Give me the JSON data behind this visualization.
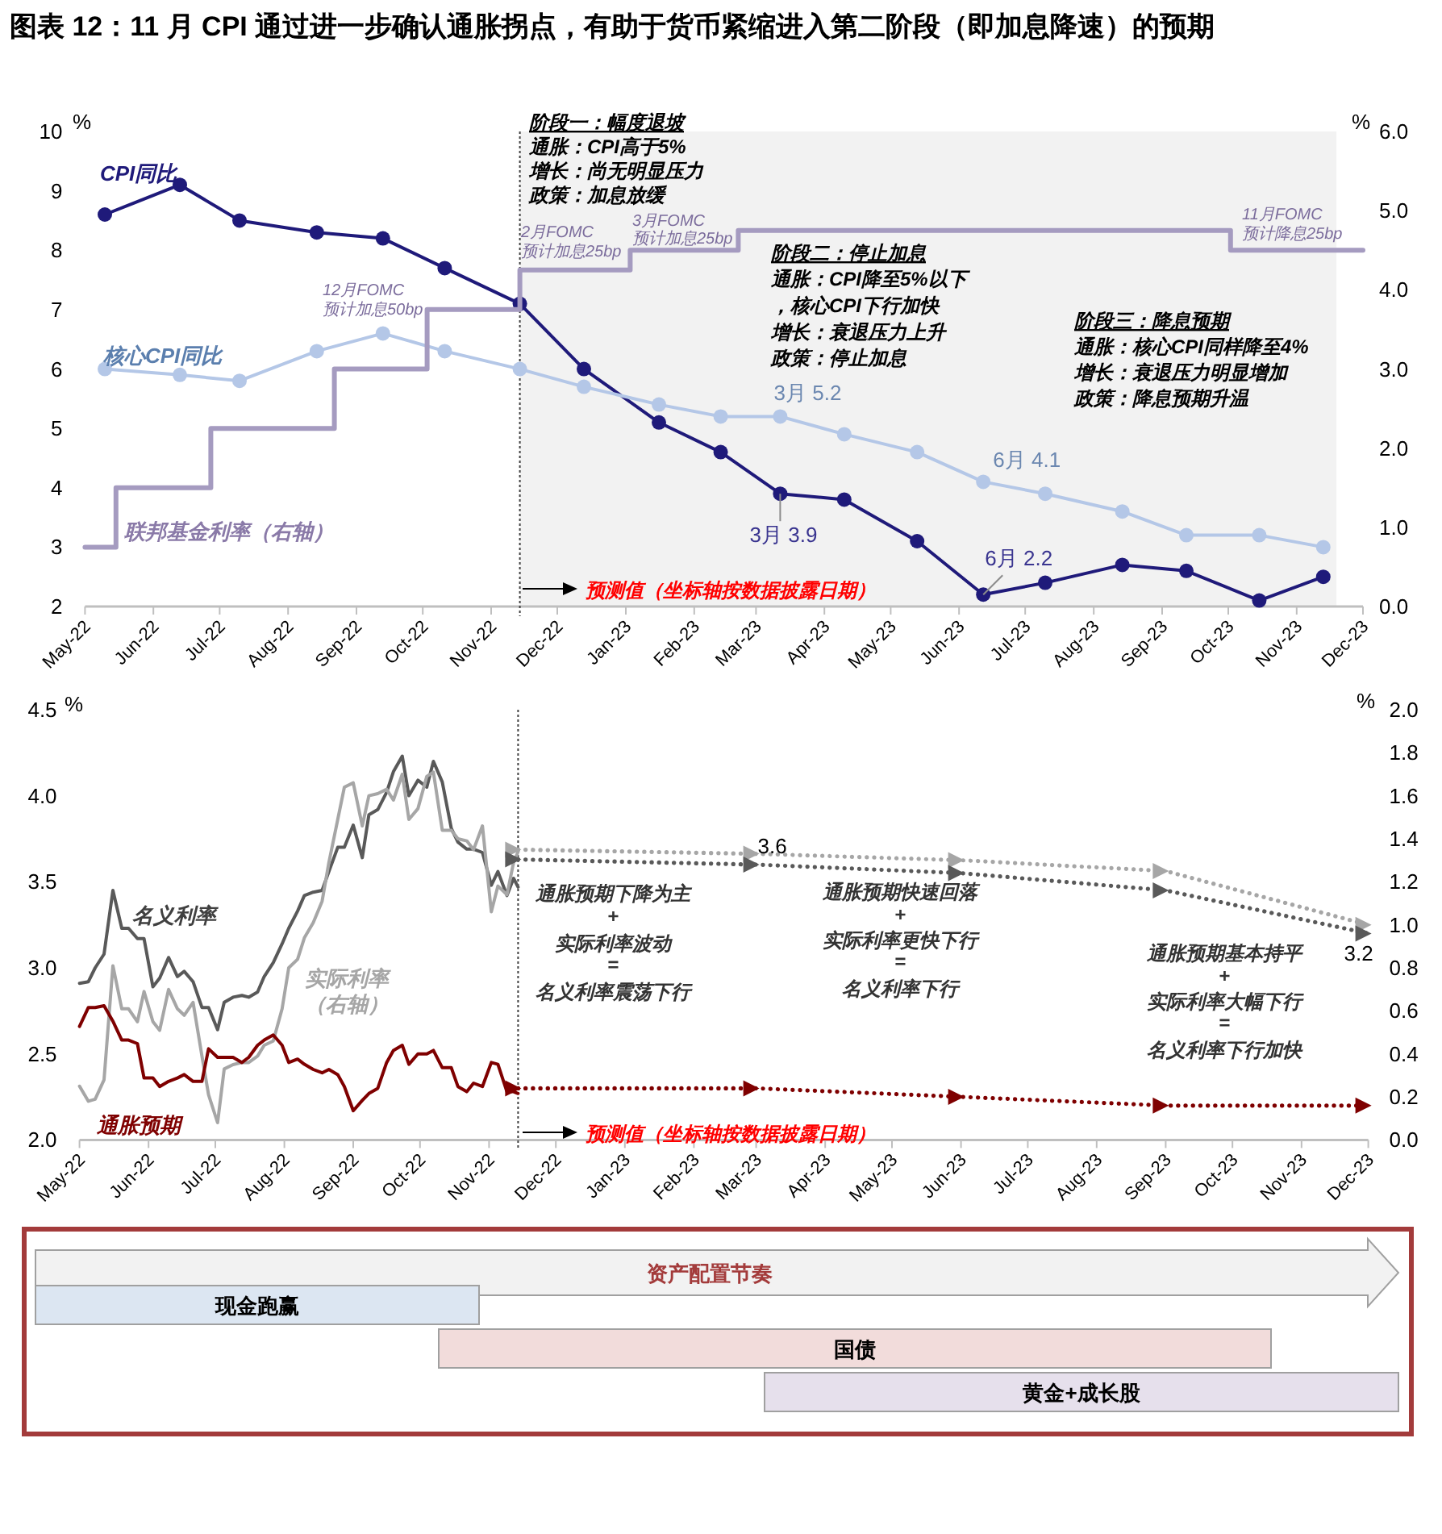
{
  "chart_data": [
    {
      "type": "line",
      "title": "图表 12：11 月 CPI 通过进一步确认通胀拐点，有助于货币紧缩进入第二阶段（即加息降速）的预期",
      "x": [
        "2022-05-10",
        "2022-06-13",
        "2022-07-10",
        "2022-08-14",
        "2022-09-13",
        "2022-10-11",
        "2022-11-14",
        "2022-12-13",
        "2023-01-16",
        "2023-02-13",
        "2023-03-12",
        "2023-04-10",
        "2023-05-13",
        "2023-06-12",
        "2023-07-10",
        "2023-08-14",
        "2023-09-12",
        "2023-10-15",
        "2023-11-13"
      ],
      "xlim": [
        "2022-05",
        "2023-12"
      ],
      "xticks": [
        {
          "value": "2022-05",
          "label": "May-22"
        },
        {
          "value": "2022-06",
          "label": "Jun-22"
        },
        {
          "value": "2022-07",
          "label": "Jul-22"
        },
        {
          "value": "2022-08",
          "label": "Aug-22"
        },
        {
          "value": "2022-09",
          "label": "Sep-22"
        },
        {
          "value": "2022-10",
          "label": "Oct-22"
        },
        {
          "value": "2022-11",
          "label": "Nov-22"
        },
        {
          "value": "2022-12",
          "label": "Dec-22"
        },
        {
          "value": "2023-01",
          "label": "Jan-23"
        },
        {
          "value": "2023-02",
          "label": "Feb-23"
        },
        {
          "value": "2023-03",
          "label": "Mar-23"
        },
        {
          "value": "2023-04",
          "label": "Apr-23"
        },
        {
          "value": "2023-05",
          "label": "May-23"
        },
        {
          "value": "2023-06",
          "label": "Jun-23"
        },
        {
          "value": "2023-07",
          "label": "Jul-23"
        },
        {
          "value": "2023-08",
          "label": "Aug-23"
        },
        {
          "value": "2023-09",
          "label": "Sep-23"
        },
        {
          "value": "2023-10",
          "label": "Oct-23"
        },
        {
          "value": "2023-11",
          "label": "Nov-23"
        },
        {
          "value": "2023-12",
          "label": "Dec-23"
        }
      ],
      "ylim": [
        2,
        10
      ],
      "yticks": [
        2,
        3,
        4,
        5,
        6,
        7,
        8,
        9,
        10
      ],
      "y2lim": [
        0,
        6
      ],
      "y2ticks": [
        {
          "value": 0,
          "label": "0.0"
        },
        {
          "value": 1,
          "label": "1.0"
        },
        {
          "value": 2,
          "label": "2.0"
        },
        {
          "value": 3,
          "label": "3.0"
        },
        {
          "value": 4,
          "label": "4.0"
        },
        {
          "value": 5,
          "label": "5.0"
        },
        {
          "value": 6,
          "label": "6.0"
        }
      ],
      "ylabel": "%",
      "y2label": "%",
      "series": [
        {
          "name": "CPI同比",
          "color": "#1f1a7a",
          "marker": "circle",
          "values": [
            8.6,
            9.1,
            8.5,
            8.3,
            8.2,
            7.7,
            7.1,
            6.0,
            5.1,
            4.6,
            3.9,
            3.8,
            3.1,
            2.2,
            2.4,
            2.7,
            2.6,
            2.1,
            2.5
          ]
        },
        {
          "name": "核心CPI同比",
          "color": "#b4c7e7",
          "marker": "circle",
          "values": [
            6.0,
            5.9,
            5.8,
            6.3,
            6.6,
            6.3,
            6.0,
            5.7,
            5.4,
            5.2,
            5.2,
            4.9,
            4.6,
            4.1,
            3.9,
            3.6,
            3.2,
            3.2,
            3.0
          ]
        },
        {
          "name": "联邦基金利率（右轴）",
          "color": "#a59bc0",
          "type": "step",
          "axis": "y2",
          "x": [
            "2022-05-01",
            "2022-05-15",
            "2022-06-27",
            "2022-08-22",
            "2022-10-03",
            "2022-11-14",
            "2023-01-03",
            "2023-02-21",
            "2023-10-02",
            "2023-12-01"
          ],
          "values": [
            0.75,
            1.5,
            2.25,
            3.0,
            3.75,
            4.25,
            4.5,
            4.75,
            4.5,
            4.5
          ]
        }
      ],
      "bands": [
        {
          "axis": "x",
          "from": "2022-11-14",
          "to": "2023-11-19",
          "color": "#f2f2f2"
        }
      ],
      "ref_lines": [
        {
          "axis": "x",
          "value": "2022-11-14",
          "line_style": "dotted",
          "color": "#404040"
        }
      ],
      "annotations": [
        "阶段一：幅度退坡",
        "通胀：CPI高于5%",
        "增长：尚无明显压力",
        "政策：加息放缓",
        "阶段二：停止加息",
        "通胀：CPI降至5%以下，核心CPI下行加快",
        "增长：衰退压力上升",
        "政策：停止加息",
        "阶段三：降息预期",
        "通胀：核心CPI同样降至4%",
        "增长：衰退压力明显增加",
        "政策：降息预期升温",
        "12月FOMC",
        "预计加息50bp",
        "2月FOMC",
        "预计加息25bp",
        "3月FOMC",
        "预计加息25bp",
        "11月FOMC",
        "预计降息25bp",
        "预测值（坐标轴按数据披露日期）",
        {
          "text": "3月 3.9",
          "x": "2023-03-12",
          "y": 3.9
        },
        {
          "text": "6月 2.2",
          "x": "2023-06-12",
          "y": 2.2
        },
        {
          "text": "3月 5.2",
          "x": "2023-03-12",
          "y": 5.2
        },
        {
          "text": "6月 4.1",
          "x": "2023-06-12",
          "y": 4.1
        }
      ]
    },
    {
      "type": "line",
      "x": [
        "2022-05-01",
        "2022-05-05",
        "2022-05-08",
        "2022-05-12",
        "2022-05-16",
        "2022-05-20",
        "2022-05-23",
        "2022-05-27",
        "2022-05-30",
        "2022-06-03",
        "2022-06-06",
        "2022-06-10",
        "2022-06-14",
        "2022-06-17",
        "2022-06-21",
        "2022-06-25",
        "2022-06-28",
        "2022-07-02",
        "2022-07-05",
        "2022-07-09",
        "2022-07-13",
        "2022-07-16",
        "2022-07-20",
        "2022-07-23",
        "2022-07-27",
        "2022-07-31",
        "2022-08-03",
        "2022-08-07",
        "2022-08-10",
        "2022-08-14",
        "2022-08-18",
        "2022-08-21",
        "2022-08-25",
        "2022-08-28",
        "2022-09-01",
        "2022-09-05",
        "2022-09-08",
        "2022-09-12",
        "2022-09-16",
        "2022-09-19",
        "2022-09-23",
        "2022-09-26",
        "2022-09-30",
        "2022-10-04",
        "2022-10-07",
        "2022-10-11",
        "2022-10-15",
        "2022-10-18",
        "2022-10-22",
        "2022-10-25",
        "2022-10-29",
        "2022-11-02",
        "2022-11-05",
        "2022-11-09",
        "2022-11-12",
        "2022-11-14"
      ],
      "xlim": [
        "2022-05",
        "2023-12"
      ],
      "xticks": [
        {
          "value": "2022-05",
          "label": "May-22"
        },
        {
          "value": "2022-06",
          "label": "Jun-22"
        },
        {
          "value": "2022-07",
          "label": "Jul-22"
        },
        {
          "value": "2022-08",
          "label": "Aug-22"
        },
        {
          "value": "2022-09",
          "label": "Sep-22"
        },
        {
          "value": "2022-10",
          "label": "Oct-22"
        },
        {
          "value": "2022-11",
          "label": "Nov-22"
        },
        {
          "value": "2022-12",
          "label": "Dec-22"
        },
        {
          "value": "2023-01",
          "label": "Jan-23"
        },
        {
          "value": "2023-02",
          "label": "Feb-23"
        },
        {
          "value": "2023-03",
          "label": "Mar-23"
        },
        {
          "value": "2023-04",
          "label": "Apr-23"
        },
        {
          "value": "2023-05",
          "label": "May-23"
        },
        {
          "value": "2023-06",
          "label": "Jun-23"
        },
        {
          "value": "2023-07",
          "label": "Jul-23"
        },
        {
          "value": "2023-08",
          "label": "Aug-23"
        },
        {
          "value": "2023-09",
          "label": "Sep-23"
        },
        {
          "value": "2023-10",
          "label": "Oct-23"
        },
        {
          "value": "2023-11",
          "label": "Nov-23"
        },
        {
          "value": "2023-12",
          "label": "Dec-23"
        }
      ],
      "ylim": [
        2,
        4.5
      ],
      "yticks": [
        {
          "value": 2,
          "label": "2.0"
        },
        {
          "value": 2.5,
          "label": "2.5"
        },
        {
          "value": 3,
          "label": "3.0"
        },
        {
          "value": 3.5,
          "label": "3.5"
        },
        {
          "value": 4,
          "label": "4.0"
        },
        {
          "value": 4.5,
          "label": "4.5"
        }
      ],
      "y2lim": [
        0,
        2
      ],
      "y2ticks": [
        {
          "value": 0,
          "label": "0.0"
        },
        {
          "value": 0.2,
          "label": "0.2"
        },
        {
          "value": 0.4,
          "label": "0.4"
        },
        {
          "value": 0.6,
          "label": "0.6"
        },
        {
          "value": 0.8,
          "label": "0.8"
        },
        {
          "value": 1,
          "label": "1.0"
        },
        {
          "value": 1.2,
          "label": "1.2"
        },
        {
          "value": 1.4,
          "label": "1.4"
        },
        {
          "value": 1.6,
          "label": "1.6"
        },
        {
          "value": 1.8,
          "label": "1.8"
        },
        {
          "value": 2,
          "label": "2.0"
        }
      ],
      "ylabel": "%",
      "y2label": "%",
      "series": [
        {
          "name": "名义利率",
          "color": "#595959",
          "values": [
            2.91,
            2.92,
            3.0,
            3.08,
            3.45,
            3.23,
            3.23,
            3.17,
            3.17,
            2.89,
            2.94,
            3.06,
            2.95,
            2.98,
            2.92,
            2.77,
            2.77,
            2.64,
            2.8,
            2.83,
            2.84,
            2.83,
            2.86,
            2.95,
            3.03,
            3.14,
            3.23,
            3.33,
            3.42,
            3.44,
            3.45,
            3.56,
            3.7,
            3.7,
            3.83,
            3.64,
            3.89,
            3.92,
            4.02,
            4.14,
            4.23,
            4.0,
            4.09,
            4.05,
            4.2,
            4.08,
            3.81,
            3.73,
            3.69,
            3.69,
            3.67,
            3.48,
            3.56,
            3.42,
            3.52,
            3.47
          ]
        },
        {
          "name": "实际利率（右轴）",
          "color": "#a6a6a6",
          "axis": "y2",
          "values": [
            0.25,
            0.18,
            0.19,
            0.28,
            0.81,
            0.61,
            0.61,
            0.55,
            0.69,
            0.55,
            0.51,
            0.7,
            0.61,
            0.58,
            0.64,
            0.39,
            0.21,
            0.08,
            0.33,
            0.35,
            0.36,
            0.36,
            0.39,
            0.44,
            0.46,
            0.61,
            0.8,
            0.84,
            0.94,
            1.01,
            1.11,
            1.29,
            1.49,
            1.64,
            1.66,
            1.46,
            1.6,
            1.61,
            1.63,
            1.58,
            1.7,
            1.49,
            1.54,
            1.69,
            1.71,
            1.44,
            1.44,
            1.4,
            1.39,
            1.35,
            1.46,
            1.06,
            1.18,
            1.14,
            1.29,
            1.34
          ]
        },
        {
          "name": "通胀预期",
          "color": "#7f0000",
          "values": [
            2.66,
            2.77,
            2.77,
            2.78,
            2.69,
            2.58,
            2.58,
            2.56,
            2.36,
            2.36,
            2.31,
            2.34,
            2.36,
            2.38,
            2.34,
            2.34,
            2.53,
            2.48,
            2.48,
            2.48,
            2.45,
            2.48,
            2.55,
            2.58,
            2.61,
            2.55,
            2.45,
            2.47,
            2.44,
            2.41,
            2.39,
            2.41,
            2.38,
            2.31,
            2.17,
            2.23,
            2.27,
            2.3,
            2.45,
            2.52,
            2.55,
            2.44,
            2.5,
            2.5,
            2.52,
            2.42,
            2.42,
            2.31,
            2.28,
            2.33,
            2.31,
            2.45,
            2.44,
            2.28,
            2.28,
            2.27
          ]
        },
        {
          "color": "#a6a6a6",
          "axis": "y2",
          "line_style": "dotted",
          "marker": "triangle",
          "x": [
            "2022-11-14",
            "2023-03-01",
            "2023-06-01",
            "2023-09-01",
            "2023-12-01"
          ],
          "values": [
            1.35,
            1.33,
            1.3,
            1.25,
            1.0
          ]
        },
        {
          "color": "#595959",
          "line_style": "dotted",
          "marker": "triangle",
          "x": [
            "2022-11-14",
            "2023-03-01",
            "2023-06-01",
            "2023-09-01",
            "2023-12-01"
          ],
          "values": [
            3.63,
            3.6,
            3.55,
            3.45,
            3.2
          ],
          "value_labels": [
            null,
            "3.6",
            null,
            null,
            "3.2"
          ]
        },
        {
          "color": "#7f0000",
          "line_style": "dotted",
          "marker": "triangle",
          "x": [
            "2022-11-14",
            "2023-03-01",
            "2023-06-01",
            "2023-09-01",
            "2023-12-01"
          ],
          "values": [
            2.3,
            2.3,
            2.25,
            2.2,
            2.2
          ]
        }
      ],
      "ref_lines": [
        {
          "axis": "x",
          "value": "2022-11-14",
          "line_style": "dotted",
          "color": "#404040"
        }
      ],
      "annotations": [
        "通胀预期下降为主",
        "+",
        "实际利率波动",
        "=",
        "名义利率震荡下行",
        "通胀预期快速回落",
        "+",
        "实际利率更快下行",
        "=",
        "名义利率下行",
        "通胀预期基本持平",
        "+",
        "实际利率大幅下行",
        "=",
        "名义利率下行加快",
        "预测值（坐标轴按数据披露日期）"
      ]
    },
    {
      "type": "other",
      "title": "资产配置节奏",
      "categories": [
        "现金跑赢",
        "国债",
        "黄金+成长股"
      ]
    }
  ]
}
